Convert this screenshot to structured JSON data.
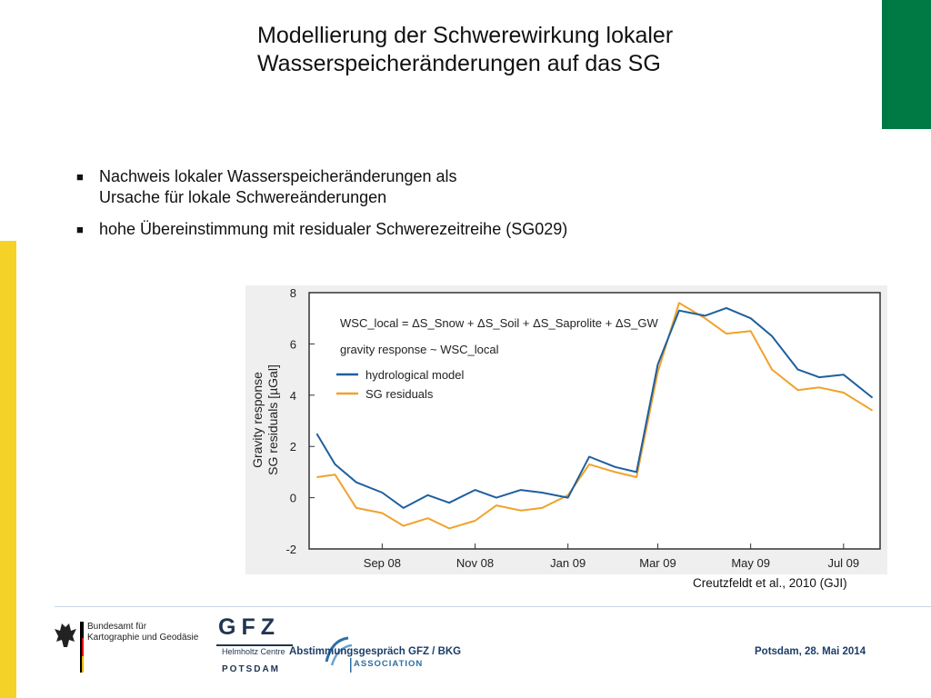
{
  "colors": {
    "accent_green": "#007a45",
    "accent_yellow": "#f5d228",
    "hydro": "#1f5f9e",
    "sg": "#f0a22b"
  },
  "slide": {
    "title_line1": "Modellierung der Schwerewirkung lokaler",
    "title_line2": "Wasserspeicheränderungen auf das SG",
    "bullets": [
      {
        "line1": "Nachweis lokaler Wasserspeicheränderungen als",
        "line2": "Ursache für lokale Schwereänderungen"
      },
      {
        "line1": "hohe Übereinstimmung mit residualer Schwerezeitreihe (SG029)",
        "line2": ""
      }
    ],
    "bullet_glyph": "■",
    "source": "Creutzfeldt et al., 2010 (GJI)"
  },
  "footer": {
    "center": "Abstimmungsgespräch GFZ / BKG",
    "right": "Potsdam, 28. Mai 2014",
    "bkg_line1": "Bundesamt für",
    "bkg_line2": "Kartographie und Geodäsie",
    "gfz_word": "GFZ",
    "gfz_sub1": "Helmholtz Centre",
    "gfz_sub2": "POTSDAM",
    "helmholtz_assoc": "ASSOCIATION"
  },
  "chart_data": {
    "type": "line",
    "ylabel_line1": "Gravity response",
    "ylabel_line2": "SG residuals [µGal]",
    "ylim": [
      -2,
      8
    ],
    "yticks": [
      "-2",
      "0",
      "2",
      "4",
      "6",
      "8"
    ],
    "xticks": [
      "Sep 08",
      "Nov 08",
      "Jan 09",
      "Mar 09",
      "May 09",
      "Jul 09"
    ],
    "x": [
      "2008-07-20",
      "2008-08-01",
      "2008-08-15",
      "2008-09-01",
      "2008-09-15",
      "2008-10-01",
      "2008-10-15",
      "2008-11-01",
      "2008-11-15",
      "2008-12-01",
      "2008-12-15",
      "2009-01-01",
      "2009-01-15",
      "2009-02-01",
      "2009-02-15",
      "2009-03-01",
      "2009-03-15",
      "2009-04-01",
      "2009-04-15",
      "2009-05-01",
      "2009-05-15",
      "2009-06-01",
      "2009-06-15",
      "2009-07-01",
      "2009-07-20"
    ],
    "annotation_line1": "WSC_local = ΔS_Snow + ΔS_Soil + ΔS_Saprolite + ΔS_GW",
    "annotation_line2": "gravity response ~ WSC_local",
    "series": [
      {
        "name": "hydrological model",
        "values": [
          2.5,
          1.3,
          0.6,
          0.2,
          -0.4,
          0.1,
          -0.2,
          0.3,
          0.0,
          0.3,
          0.2,
          0.0,
          1.6,
          1.2,
          1.0,
          5.2,
          7.3,
          7.1,
          7.4,
          7.0,
          6.3,
          5.0,
          4.7,
          4.8,
          3.9
        ]
      },
      {
        "name": "SG residuals",
        "values": [
          0.8,
          0.9,
          -0.4,
          -0.6,
          -1.1,
          -0.8,
          -1.2,
          -0.9,
          -0.3,
          -0.5,
          -0.4,
          0.1,
          1.3,
          1.0,
          0.8,
          4.9,
          7.6,
          7.0,
          6.4,
          6.5,
          5.0,
          4.2,
          4.3,
          4.1,
          3.4
        ]
      }
    ],
    "legend_position": "top-left",
    "grid": false
  }
}
